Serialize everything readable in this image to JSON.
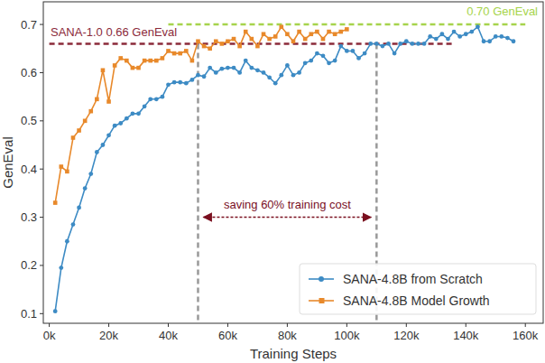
{
  "chart_data": {
    "type": "line",
    "x_label": "Training Steps",
    "y_label": "GenEval",
    "xlim": [
      -2000,
      166000
    ],
    "ylim": [
      0.08,
      0.747
    ],
    "xticks": [
      {
        "value": 0,
        "label": "0k"
      },
      {
        "value": 20000,
        "label": "20k"
      },
      {
        "value": 40000,
        "label": "40k"
      },
      {
        "value": 60000,
        "label": "60k"
      },
      {
        "value": 80000,
        "label": "80k"
      },
      {
        "value": 100000,
        "label": "100k"
      },
      {
        "value": 120000,
        "label": "120k"
      },
      {
        "value": 140000,
        "label": "140k"
      },
      {
        "value": 160000,
        "label": "160k"
      }
    ],
    "yticks": [
      0.1,
      0.2,
      0.3,
      0.4,
      0.5,
      0.6,
      0.7
    ],
    "grid": false,
    "legend": "lower right",
    "series": [
      {
        "name": "SANA-4.8B from Scratch",
        "color": "#3d8bc4",
        "marker": "circle",
        "line_style": "solid",
        "x": [
          2000,
          4000,
          6000,
          8000,
          10000,
          12000,
          14000,
          16000,
          18000,
          20000,
          22000,
          24000,
          26000,
          28000,
          30000,
          32000,
          34000,
          36000,
          38000,
          40000,
          42000,
          44000,
          46000,
          48000,
          50000,
          52000,
          54000,
          56000,
          58000,
          60000,
          62000,
          64000,
          66000,
          68000,
          70000,
          72000,
          74000,
          76000,
          78000,
          80000,
          82000,
          84000,
          86000,
          88000,
          90000,
          92000,
          94000,
          96000,
          98000,
          100000,
          102000,
          104000,
          106000,
          108000,
          110000,
          112000,
          114000,
          116000,
          118000,
          120000,
          122000,
          124000,
          126000,
          128000,
          130000,
          132000,
          134000,
          136000,
          138000,
          140000,
          142000,
          144000,
          146000,
          148000,
          150000,
          152000,
          154000,
          156000
        ],
        "values": [
          0.105,
          0.195,
          0.25,
          0.285,
          0.32,
          0.36,
          0.39,
          0.435,
          0.45,
          0.47,
          0.49,
          0.495,
          0.505,
          0.515,
          0.515,
          0.53,
          0.545,
          0.545,
          0.55,
          0.575,
          0.58,
          0.58,
          0.578,
          0.585,
          0.595,
          0.592,
          0.61,
          0.6,
          0.608,
          0.61,
          0.61,
          0.6,
          0.625,
          0.61,
          0.605,
          0.6,
          0.59,
          0.578,
          0.595,
          0.615,
          0.595,
          0.6,
          0.62,
          0.625,
          0.64,
          0.635,
          0.62,
          0.625,
          0.655,
          0.645,
          0.645,
          0.63,
          0.64,
          0.66,
          0.66,
          0.655,
          0.66,
          0.64,
          0.66,
          0.665,
          0.66,
          0.66,
          0.66,
          0.675,
          0.67,
          0.68,
          0.67,
          0.685,
          0.675,
          0.68,
          0.685,
          0.695,
          0.665,
          0.665,
          0.675,
          0.675,
          0.672,
          0.665
        ]
      },
      {
        "name": "SANA-4.8B Model Growth",
        "color": "#e8892b",
        "marker": "square",
        "line_style": "solid",
        "x": [
          2000,
          4000,
          6000,
          8000,
          10000,
          12000,
          14000,
          16000,
          18000,
          20000,
          22000,
          24000,
          26000,
          28000,
          30000,
          32000,
          34000,
          36000,
          38000,
          40000,
          42000,
          44000,
          46000,
          48000,
          50000,
          52000,
          54000,
          56000,
          58000,
          60000,
          62000,
          64000,
          66000,
          68000,
          70000,
          72000,
          74000,
          76000,
          78000,
          80000,
          82000,
          84000,
          86000,
          88000,
          90000,
          92000,
          94000,
          96000,
          98000,
          100000
        ],
        "values": [
          0.33,
          0.405,
          0.395,
          0.465,
          0.48,
          0.5,
          0.52,
          0.545,
          0.605,
          0.54,
          0.615,
          0.63,
          0.625,
          0.61,
          0.61,
          0.625,
          0.625,
          0.625,
          0.63,
          0.645,
          0.64,
          0.64,
          0.645,
          0.625,
          0.665,
          0.655,
          0.65,
          0.665,
          0.66,
          0.665,
          0.67,
          0.655,
          0.685,
          0.67,
          0.655,
          0.68,
          0.67,
          0.675,
          0.695,
          0.68,
          0.665,
          0.685,
          0.67,
          0.68,
          0.685,
          0.67,
          0.685,
          0.68,
          0.685,
          0.69
        ]
      }
    ],
    "reference_lines": [
      {
        "label": "SANA-1.0 0.66 GenEval",
        "y": 0.66,
        "x_start": 0,
        "x_end": 136000,
        "color": "#8b2a3a",
        "line_style": "dashed"
      },
      {
        "label": "0.70 GenEval",
        "y": 0.7,
        "x_start": 40000,
        "x_end": 160000,
        "color": "#a6d44c",
        "line_style": "dashed"
      }
    ],
    "vertical_lines": [
      {
        "x": 50000,
        "y_top": 0.66,
        "color": "#999999",
        "line_style": "dashed"
      },
      {
        "x": 110000,
        "y_top": 0.66,
        "color": "#999999",
        "line_style": "dashed"
      }
    ],
    "span_annotation": {
      "text": "saving 60% training cost",
      "x_start": 50000,
      "x_end": 110000,
      "y": 0.3,
      "color": "#7a0f1f"
    }
  }
}
